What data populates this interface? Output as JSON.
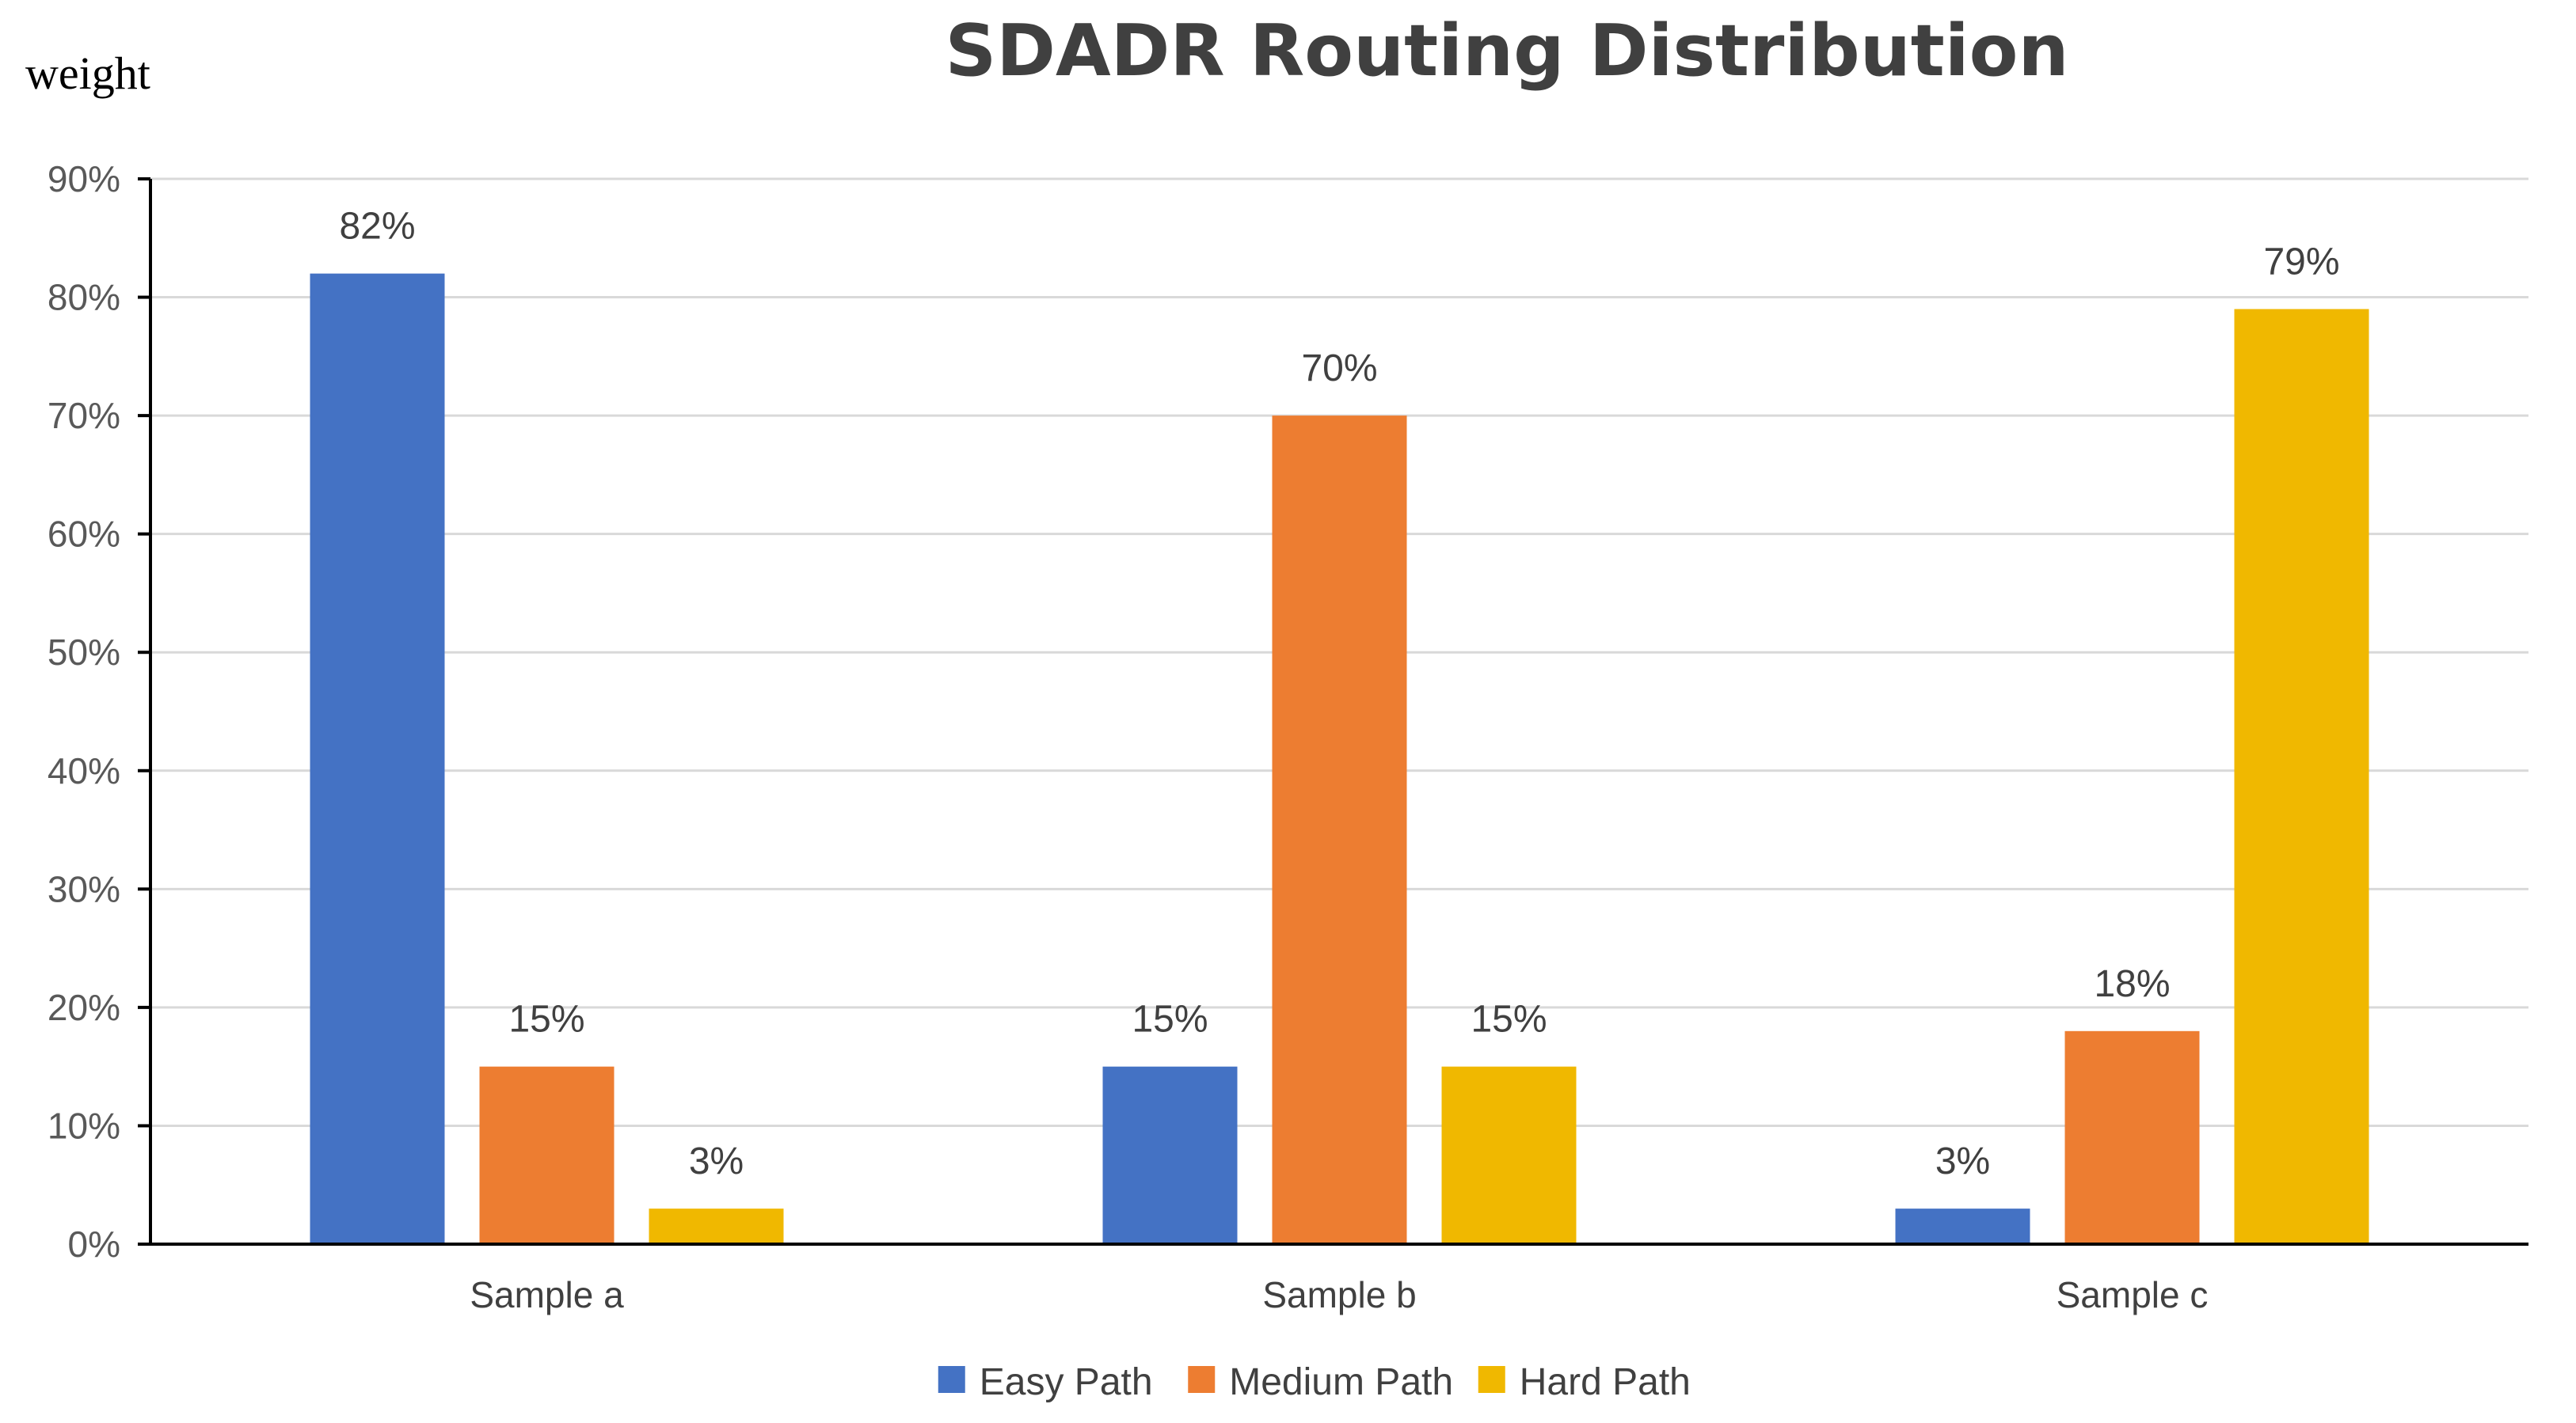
{
  "chart_data": {
    "type": "bar",
    "title": "SDADR Routing Distribution",
    "ylabel": "weight",
    "xlabel": "",
    "ylim": [
      0,
      90
    ],
    "ytick_step": 10,
    "ytick_suffix": "%",
    "grid": true,
    "legend_position": "bottom",
    "categories": [
      "Sample a",
      "Sample b",
      "Sample c"
    ],
    "series": [
      {
        "name": "Easy Path",
        "color": "#4472C4",
        "values": [
          82,
          15,
          3
        ],
        "labels": [
          "82%",
          "15%",
          "3%"
        ]
      },
      {
        "name": "Medium Path",
        "color": "#ED7D31",
        "values": [
          15,
          70,
          18
        ],
        "labels": [
          "15%",
          "70%",
          "18%"
        ]
      },
      {
        "name": "Hard Path",
        "color": "#F0B800",
        "values": [
          3,
          15,
          79
        ],
        "labels": [
          "3%",
          "15%",
          "79%"
        ]
      }
    ]
  }
}
